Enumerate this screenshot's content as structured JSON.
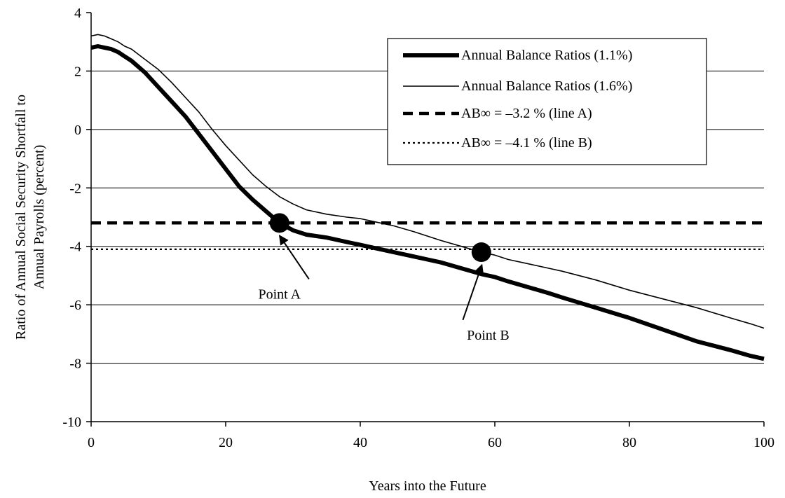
{
  "chart_data": {
    "type": "line",
    "xlabel": "Years into the Future",
    "ylabel_lines": [
      "Ratio of Annual Social Security Shortfall to",
      "Annual Payrolls (percent)"
    ],
    "xlim": [
      0,
      100
    ],
    "ylim": [
      -10,
      4
    ],
    "xticks": [
      0,
      20,
      40,
      60,
      80,
      100
    ],
    "yticks": [
      4,
      2,
      0,
      -2,
      -4,
      -6,
      -8,
      -10
    ],
    "grid": "horizontal",
    "legend_position": "top-right",
    "series": [
      {
        "name": "Annual Balance Ratios  (1.1%)",
        "style": "thick",
        "color": "#000000",
        "x": [
          0,
          1,
          2,
          3,
          4,
          5,
          6,
          8,
          10,
          12,
          14,
          16,
          18,
          20,
          22,
          24,
          26,
          28,
          30,
          32,
          35,
          38,
          40,
          42,
          45,
          48,
          50,
          52,
          55,
          58,
          60,
          62,
          65,
          68,
          70,
          75,
          80,
          85,
          90,
          95,
          98,
          100
        ],
        "y": [
          2.8,
          2.85,
          2.8,
          2.75,
          2.65,
          2.5,
          2.35,
          1.95,
          1.45,
          0.95,
          0.45,
          -0.15,
          -0.75,
          -1.35,
          -1.95,
          -2.4,
          -2.8,
          -3.2,
          -3.45,
          -3.6,
          -3.7,
          -3.85,
          -3.95,
          -4.05,
          -4.2,
          -4.35,
          -4.45,
          -4.55,
          -4.75,
          -4.95,
          -5.05,
          -5.2,
          -5.4,
          -5.6,
          -5.75,
          -6.1,
          -6.45,
          -6.85,
          -7.25,
          -7.55,
          -7.75,
          -7.85
        ]
      },
      {
        "name": "Annual Balance Ratios (1.6%)",
        "style": "thin",
        "color": "#000000",
        "x": [
          0,
          1,
          2,
          3,
          4,
          5,
          6,
          8,
          10,
          12,
          14,
          16,
          18,
          20,
          22,
          24,
          26,
          28,
          30,
          32,
          35,
          38,
          40,
          42,
          45,
          48,
          50,
          52,
          55,
          58,
          60,
          62,
          65,
          68,
          70,
          75,
          80,
          85,
          90,
          95,
          98,
          100
        ],
        "y": [
          3.2,
          3.25,
          3.2,
          3.1,
          3.0,
          2.85,
          2.75,
          2.4,
          2.05,
          1.6,
          1.1,
          0.6,
          0.0,
          -0.55,
          -1.05,
          -1.55,
          -1.95,
          -2.3,
          -2.55,
          -2.75,
          -2.9,
          -3.0,
          -3.05,
          -3.15,
          -3.3,
          -3.5,
          -3.65,
          -3.8,
          -4.0,
          -4.2,
          -4.3,
          -4.45,
          -4.6,
          -4.75,
          -4.85,
          -5.15,
          -5.5,
          -5.8,
          -6.1,
          -6.45,
          -6.65,
          -6.8
        ]
      },
      {
        "name": "AB∞  = –3.2 %  (line A)",
        "style": "dashed",
        "color": "#000000",
        "x": [
          0,
          100
        ],
        "y": [
          -3.2,
          -3.2
        ]
      },
      {
        "name": "AB∞ = –4.1 %   (line B)",
        "style": "dotted",
        "color": "#000000",
        "x": [
          0,
          100
        ],
        "y": [
          -4.1,
          -4.1
        ]
      }
    ],
    "points": [
      {
        "label": "Point A",
        "x": 28,
        "y": -3.2,
        "label_x": 28,
        "label_y": -5.6
      },
      {
        "label": "Point B",
        "x": 58,
        "y": -4.2,
        "label_x": 59,
        "label_y": -7.0
      }
    ]
  }
}
